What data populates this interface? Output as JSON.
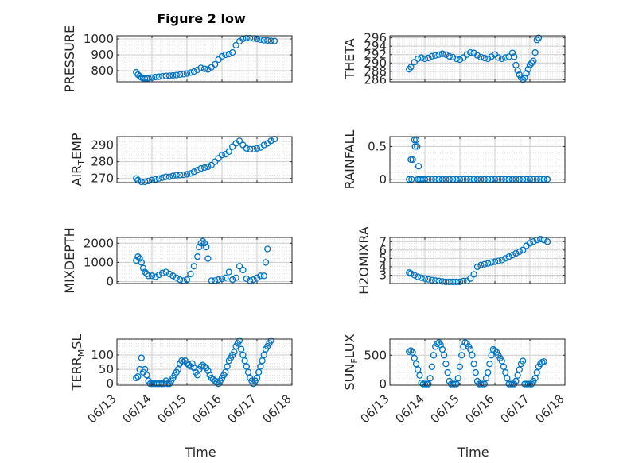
{
  "figure_title": "Figure 2 low",
  "marker_color": "#0072BD",
  "xlabel": "Time",
  "x_tick_labels": [
    "06/13",
    "06/14",
    "06/15",
    "06/16",
    "06/17",
    "06/18"
  ],
  "chart_data": [
    {
      "type": "scatter",
      "id": "pressure",
      "ylabel_main": "PRESSURE",
      "ylabel_sub": "",
      "ylabel_tail": "",
      "xlim": [
        0,
        5
      ],
      "ylim": [
        730,
        1020
      ],
      "yticks": [
        800,
        900,
        1000
      ],
      "yticklabels": [
        "800",
        "900",
        "1000"
      ],
      "x": [
        0.55,
        0.6,
        0.65,
        0.7,
        0.75,
        0.8,
        0.85,
        0.9,
        1.0,
        1.1,
        1.2,
        1.3,
        1.4,
        1.5,
        1.6,
        1.7,
        1.8,
        1.9,
        2.0,
        2.1,
        2.2,
        2.3,
        2.4,
        2.5,
        2.6,
        2.7,
        2.8,
        2.9,
        3.0,
        3.1,
        3.2,
        3.3,
        3.4,
        3.5,
        3.6,
        3.7,
        3.8,
        3.9,
        4.0,
        4.1,
        4.2,
        4.3,
        4.4,
        4.5
      ],
      "y": [
        790,
        775,
        765,
        757,
        752,
        750,
        751,
        753,
        756,
        760,
        762,
        765,
        767,
        768,
        770,
        772,
        775,
        778,
        782,
        788,
        795,
        805,
        818,
        812,
        808,
        822,
        840,
        870,
        890,
        900,
        905,
        915,
        960,
        985,
        1000,
        1005,
        1005,
        1003,
        1000,
        995,
        992,
        990,
        988,
        987
      ]
    },
    {
      "type": "scatter",
      "id": "theta",
      "ylabel_main": "THETA",
      "ylabel_sub": "",
      "ylabel_tail": "",
      "xlim": [
        0,
        5
      ],
      "ylim": [
        285.5,
        296.5
      ],
      "yticks": [
        286,
        288,
        290,
        292,
        294,
        296
      ],
      "yticklabels": [
        "286",
        "288",
        "290",
        "292",
        "294",
        "296"
      ],
      "x": [
        0.55,
        0.6,
        0.7,
        0.8,
        0.9,
        1.0,
        1.1,
        1.2,
        1.3,
        1.4,
        1.5,
        1.6,
        1.7,
        1.8,
        1.9,
        2.0,
        2.1,
        2.2,
        2.3,
        2.4,
        2.5,
        2.6,
        2.7,
        2.8,
        2.9,
        3.0,
        3.1,
        3.2,
        3.3,
        3.4,
        3.5,
        3.55,
        3.6,
        3.65,
        3.7,
        3.75,
        3.8,
        3.85,
        3.9,
        3.95,
        4.0,
        4.05,
        4.1,
        4.15,
        4.2,
        4.25
      ],
      "y": [
        288.5,
        289.0,
        290.2,
        291.0,
        291.3,
        291.0,
        291.2,
        291.6,
        291.8,
        292.0,
        292.2,
        292.0,
        291.6,
        291.4,
        291.0,
        290.8,
        291.3,
        292.0,
        292.5,
        292.4,
        291.8,
        291.4,
        291.2,
        291.0,
        291.5,
        292.0,
        291.3,
        291.0,
        291.3,
        291.5,
        292.4,
        291.5,
        289.5,
        288.2,
        287.2,
        286.5,
        286.0,
        286.5,
        287.5,
        288.5,
        289.5,
        290.0,
        290.5,
        292.5,
        295.5,
        296.0
      ]
    },
    {
      "type": "scatter",
      "id": "air_temp",
      "ylabel_main": "AIR",
      "ylabel_sub": "T",
      "ylabel_tail": "EMP",
      "xlim": [
        0,
        5
      ],
      "ylim": [
        267.5,
        295
      ],
      "yticks": [
        270,
        280,
        290
      ],
      "yticklabels": [
        "270",
        "280",
        "290"
      ],
      "x": [
        0.55,
        0.6,
        0.7,
        0.8,
        0.9,
        1.0,
        1.1,
        1.2,
        1.3,
        1.4,
        1.5,
        1.6,
        1.7,
        1.8,
        1.9,
        2.0,
        2.1,
        2.2,
        2.3,
        2.4,
        2.5,
        2.6,
        2.7,
        2.8,
        2.9,
        3.0,
        3.1,
        3.2,
        3.3,
        3.4,
        3.5,
        3.6,
        3.7,
        3.8,
        3.9,
        4.0,
        4.1,
        4.2,
        4.3,
        4.4,
        4.5
      ],
      "y": [
        270,
        269,
        268,
        268,
        268.5,
        269,
        269.5,
        270,
        270.5,
        271,
        271,
        271.5,
        272,
        272,
        272.2,
        272.5,
        273,
        274,
        275,
        276,
        276.5,
        277,
        278,
        280,
        282,
        284,
        284.5,
        286,
        289,
        291,
        292.5,
        290,
        288,
        287.5,
        287.5,
        288,
        288.5,
        290,
        291,
        292.5,
        293.5
      ]
    },
    {
      "type": "scatter",
      "id": "rainfall",
      "ylabel_main": "RAINFALL",
      "ylabel_sub": "",
      "ylabel_tail": "",
      "xlim": [
        0,
        5
      ],
      "ylim": [
        -0.05,
        0.65
      ],
      "yticks": [
        0,
        0.5
      ],
      "yticklabels": [
        "0",
        "0.5"
      ],
      "x": [
        0.55,
        0.6,
        0.62,
        0.65,
        0.7,
        0.72,
        0.75,
        0.78,
        0.8,
        0.82,
        0.85,
        0.9,
        0.95,
        1.0,
        1.1,
        1.2,
        1.3,
        1.4,
        1.5,
        1.6,
        1.7,
        1.8,
        1.9,
        2.0,
        2.1,
        2.2,
        2.3,
        2.4,
        2.5,
        2.6,
        2.7,
        2.8,
        2.9,
        3.0,
        3.1,
        3.2,
        3.3,
        3.4,
        3.5,
        3.6,
        3.7,
        3.8,
        3.9,
        4.0,
        4.1,
        4.2,
        4.3,
        4.4,
        4.5
      ],
      "y": [
        0,
        0.3,
        0,
        0.3,
        0.6,
        0.5,
        0.6,
        0.5,
        0,
        0.2,
        0,
        0,
        0,
        0,
        0,
        0,
        0,
        0,
        0,
        0,
        0,
        0,
        0,
        0,
        0,
        0,
        0,
        0,
        0,
        0,
        0,
        0,
        0,
        0,
        0,
        0,
        0,
        0,
        0,
        0,
        0,
        0,
        0,
        0,
        0,
        0,
        0,
        0,
        0
      ]
    },
    {
      "type": "scatter",
      "id": "mixdepth",
      "ylabel_main": "MIXDEPTH",
      "ylabel_sub": "",
      "ylabel_tail": "",
      "xlim": [
        0,
        5
      ],
      "ylim": [
        -100,
        2300
      ],
      "yticks": [
        0,
        1000,
        2000
      ],
      "yticklabels": [
        "0",
        "1000",
        "2000"
      ],
      "x": [
        0.55,
        0.6,
        0.65,
        0.7,
        0.75,
        0.8,
        0.85,
        0.9,
        1.0,
        1.1,
        1.2,
        1.3,
        1.4,
        1.5,
        1.6,
        1.7,
        1.8,
        1.9,
        2.0,
        2.1,
        2.2,
        2.3,
        2.35,
        2.4,
        2.45,
        2.5,
        2.55,
        2.6,
        2.7,
        2.8,
        2.9,
        3.0,
        3.1,
        3.2,
        3.3,
        3.4,
        3.5,
        3.6,
        3.7,
        3.8,
        3.9,
        4.0,
        4.1,
        4.2,
        4.25,
        4.3
      ],
      "y": [
        1100,
        1300,
        1200,
        1000,
        700,
        500,
        400,
        300,
        300,
        250,
        350,
        450,
        500,
        400,
        300,
        200,
        100,
        50,
        100,
        400,
        800,
        1300,
        1800,
        2000,
        2100,
        2000,
        1800,
        1200,
        50,
        50,
        100,
        150,
        200,
        500,
        100,
        200,
        800,
        600,
        150,
        50,
        100,
        200,
        300,
        300,
        1000,
        1700
      ]
    },
    {
      "type": "scatter",
      "id": "h2omixra",
      "ylabel_main": "H2OMIXRA",
      "ylabel_sub": "",
      "ylabel_tail": "",
      "xlim": [
        0,
        5
      ],
      "ylim": [
        2,
        7.5
      ],
      "yticks": [
        3,
        4,
        5,
        6,
        7
      ],
      "yticklabels": [
        "3",
        "4",
        "5",
        "6",
        "7"
      ],
      "x": [
        0.55,
        0.6,
        0.7,
        0.8,
        0.9,
        1.0,
        1.1,
        1.2,
        1.3,
        1.4,
        1.5,
        1.6,
        1.7,
        1.8,
        1.9,
        2.0,
        2.1,
        2.2,
        2.3,
        2.4,
        2.5,
        2.6,
        2.7,
        2.8,
        2.9,
        3.0,
        3.1,
        3.2,
        3.3,
        3.4,
        3.5,
        3.6,
        3.7,
        3.8,
        3.9,
        4.0,
        4.1,
        4.2,
        4.3,
        4.4,
        4.5
      ],
      "y": [
        3.3,
        3.2,
        3.0,
        2.8,
        2.7,
        2.6,
        2.5,
        2.4,
        2.35,
        2.3,
        2.25,
        2.2,
        2.2,
        2.2,
        2.2,
        2.2,
        2.3,
        2.3,
        2.6,
        3.1,
        4.0,
        4.2,
        4.3,
        4.4,
        4.5,
        4.6,
        4.7,
        4.8,
        5.0,
        5.2,
        5.4,
        5.6,
        5.8,
        6.0,
        6.5,
        6.8,
        7.0,
        7.2,
        7.3,
        7.2,
        7.0
      ]
    },
    {
      "type": "scatter",
      "id": "terr_msl",
      "ylabel_main": "TERR",
      "ylabel_sub": "M",
      "ylabel_tail": "SL",
      "xlim": [
        0,
        5
      ],
      "ylim": [
        -5,
        155
      ],
      "yticks": [
        0,
        50,
        100
      ],
      "yticklabels": [
        "0",
        "50",
        "100"
      ],
      "x": [
        0.55,
        0.6,
        0.65,
        0.7,
        0.75,
        0.8,
        0.85,
        0.9,
        0.95,
        1.0,
        1.05,
        1.1,
        1.15,
        1.2,
        1.25,
        1.3,
        1.35,
        1.4,
        1.45,
        1.5,
        1.55,
        1.6,
        1.65,
        1.7,
        1.75,
        1.8,
        1.85,
        1.9,
        1.95,
        2.0,
        2.05,
        2.1,
        2.15,
        2.2,
        2.25,
        2.3,
        2.35,
        2.4,
        2.45,
        2.5,
        2.55,
        2.6,
        2.65,
        2.7,
        2.75,
        2.8,
        2.85,
        2.9,
        2.95,
        3.0,
        3.05,
        3.1,
        3.15,
        3.2,
        3.25,
        3.3,
        3.35,
        3.4,
        3.45,
        3.5,
        3.55,
        3.6,
        3.65,
        3.7,
        3.75,
        3.8,
        3.85,
        3.9,
        3.95,
        4.0,
        4.05,
        4.1,
        4.15,
        4.2,
        4.25,
        4.3,
        4.35,
        4.4
      ],
      "y": [
        20,
        25,
        50,
        90,
        40,
        50,
        30,
        10,
        0,
        0,
        0,
        0,
        0,
        0,
        0,
        0,
        0,
        10,
        0,
        0,
        10,
        20,
        30,
        40,
        50,
        70,
        80,
        75,
        80,
        70,
        65,
        60,
        70,
        55,
        40,
        30,
        50,
        60,
        65,
        60,
        55,
        45,
        30,
        20,
        15,
        10,
        5,
        0,
        10,
        20,
        30,
        40,
        60,
        80,
        90,
        100,
        110,
        130,
        140,
        150,
        120,
        100,
        80,
        60,
        40,
        20,
        10,
        0,
        10,
        20,
        40,
        60,
        80,
        100,
        120,
        130,
        140,
        150
      ]
    },
    {
      "type": "scatter",
      "id": "sun_flux",
      "ylabel_main": "SUN",
      "ylabel_sub": "F",
      "ylabel_tail": "LUX",
      "xlim": [
        0,
        5
      ],
      "ylim": [
        -20,
        780
      ],
      "yticks": [
        0,
        500
      ],
      "yticklabels": [
        "0",
        "500"
      ],
      "x": [
        0.55,
        0.6,
        0.65,
        0.7,
        0.75,
        0.8,
        0.85,
        0.9,
        0.95,
        1.0,
        1.05,
        1.1,
        1.15,
        1.2,
        1.25,
        1.3,
        1.35,
        1.4,
        1.45,
        1.5,
        1.55,
        1.6,
        1.65,
        1.7,
        1.75,
        1.8,
        1.85,
        1.9,
        1.95,
        2.0,
        2.05,
        2.1,
        2.15,
        2.2,
        2.25,
        2.3,
        2.35,
        2.4,
        2.45,
        2.5,
        2.55,
        2.6,
        2.65,
        2.7,
        2.75,
        2.8,
        2.85,
        2.9,
        2.95,
        3.0,
        3.05,
        3.1,
        3.15,
        3.2,
        3.25,
        3.3,
        3.35,
        3.4,
        3.45,
        3.5,
        3.55,
        3.6,
        3.65,
        3.7,
        3.75,
        3.8,
        3.85,
        3.9,
        3.95,
        4.0,
        4.05,
        4.1,
        4.15,
        4.2,
        4.25,
        4.3,
        4.35,
        4.4
      ],
      "y": [
        560,
        580,
        550,
        450,
        350,
        250,
        150,
        20,
        0,
        0,
        0,
        0,
        100,
        300,
        500,
        650,
        700,
        720,
        680,
        600,
        500,
        350,
        200,
        50,
        0,
        0,
        0,
        0,
        100,
        300,
        500,
        650,
        720,
        700,
        650,
        600,
        500,
        350,
        200,
        50,
        0,
        0,
        0,
        0,
        100,
        200,
        350,
        500,
        600,
        580,
        550,
        500,
        450,
        400,
        300,
        200,
        100,
        0,
        0,
        0,
        0,
        50,
        150,
        250,
        350,
        400,
        0,
        0,
        0,
        0,
        0,
        50,
        100,
        200,
        300,
        350,
        380,
        390
      ]
    }
  ]
}
